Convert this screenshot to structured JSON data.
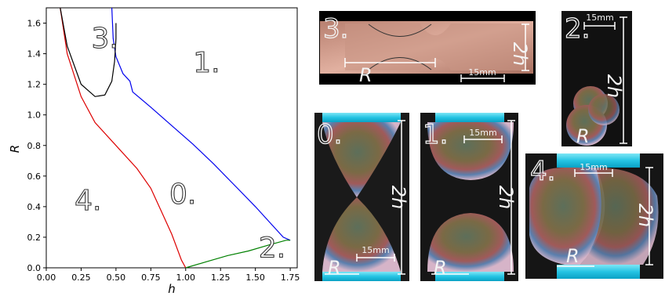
{
  "chart_data": {
    "type": "line",
    "xlabel": "h",
    "ylabel": "R",
    "xlim": [
      0.0,
      1.8
    ],
    "ylim": [
      0.0,
      1.7
    ],
    "xticks": [
      "0.00",
      "0.25",
      "0.50",
      "0.75",
      "1.00",
      "1.25",
      "1.50",
      "1.75"
    ],
    "yticks": [
      "0.0",
      "0.2",
      "0.4",
      "0.6",
      "0.8",
      "1.0",
      "1.2",
      "1.4",
      "1.6"
    ],
    "series": [
      {
        "color": "#0000ee",
        "points": [
          [
            0.47,
            1.7
          ],
          [
            0.48,
            1.5
          ],
          [
            0.5,
            1.38
          ],
          [
            0.55,
            1.27
          ],
          [
            0.6,
            1.22
          ],
          [
            0.62,
            1.15
          ],
          [
            0.75,
            1.05
          ],
          [
            0.9,
            0.93
          ],
          [
            1.05,
            0.81
          ],
          [
            1.2,
            0.68
          ],
          [
            1.35,
            0.54
          ],
          [
            1.5,
            0.4
          ],
          [
            1.6,
            0.3
          ],
          [
            1.7,
            0.2
          ],
          [
            1.75,
            0.18
          ]
        ]
      },
      {
        "color": "#dd0000",
        "points": [
          [
            0.1,
            1.7
          ],
          [
            0.15,
            1.4
          ],
          [
            0.25,
            1.12
          ],
          [
            0.35,
            0.95
          ],
          [
            0.5,
            0.8
          ],
          [
            0.65,
            0.65
          ],
          [
            0.75,
            0.52
          ],
          [
            0.82,
            0.38
          ],
          [
            0.9,
            0.22
          ],
          [
            0.97,
            0.05
          ],
          [
            1.0,
            0.0
          ]
        ]
      },
      {
        "color": "#000000",
        "points": [
          [
            0.1,
            1.7
          ],
          [
            0.15,
            1.45
          ],
          [
            0.25,
            1.2
          ],
          [
            0.35,
            1.12
          ],
          [
            0.42,
            1.13
          ],
          [
            0.47,
            1.22
          ],
          [
            0.49,
            1.35
          ],
          [
            0.5,
            1.5
          ],
          [
            0.5,
            1.6
          ]
        ]
      },
      {
        "color": "#008000",
        "points": [
          [
            1.0,
            0.0
          ],
          [
            1.15,
            0.04
          ],
          [
            1.3,
            0.08
          ],
          [
            1.45,
            0.11
          ],
          [
            1.6,
            0.15
          ],
          [
            1.72,
            0.18
          ],
          [
            1.75,
            0.18
          ]
        ]
      }
    ],
    "region_labels": [
      {
        "text": "3.",
        "x": 0.42,
        "y": 1.44
      },
      {
        "text": "1.",
        "x": 1.15,
        "y": 1.28
      },
      {
        "text": "0.",
        "x": 0.98,
        "y": 0.42
      },
      {
        "text": "4.",
        "x": 0.3,
        "y": 0.38
      },
      {
        "text": "2.",
        "x": 1.62,
        "y": 0.07
      }
    ]
  },
  "photos": {
    "p3": {
      "label": "3.",
      "dim_R": "R",
      "dim_2h": "2h",
      "scale": "15mm"
    },
    "p2": {
      "label": "2.",
      "dim_R": "R",
      "dim_2h": "2h",
      "scale": "15mm"
    },
    "p0": {
      "label": "0.",
      "dim_R": "R",
      "dim_2h": "2h",
      "scale": "15mm"
    },
    "p1": {
      "label": "1.",
      "dim_R": "R",
      "dim_2h": "2h",
      "scale": "15mm"
    },
    "p4": {
      "label": "4.",
      "dim_R": "R",
      "dim_2h": "2h",
      "scale": "15mm"
    }
  }
}
